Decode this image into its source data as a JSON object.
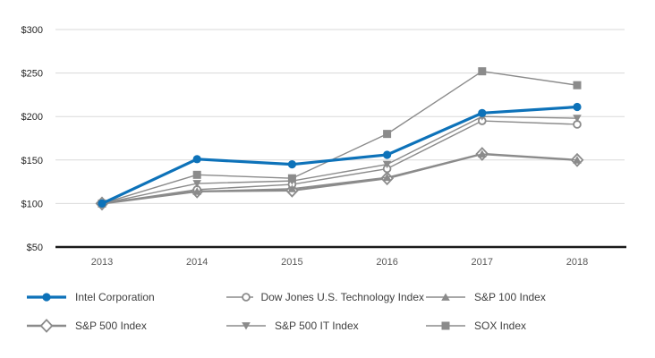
{
  "chart_data": {
    "type": "line",
    "title": "",
    "xlabel": "",
    "ylabel": "",
    "x": [
      "2013",
      "2014",
      "2015",
      "2016",
      "2017",
      "2018"
    ],
    "series": [
      {
        "name": "Intel Corporation",
        "values": [
          100,
          151,
          145,
          156,
          204,
          211
        ],
        "marker": "circle-filled",
        "color": "#0d72b9",
        "line_width": 3.2
      },
      {
        "name": "Dow Jones U.S. Technology Index",
        "values": [
          100,
          116,
          122,
          140,
          195,
          191
        ],
        "marker": "circle-open",
        "color": "#8b8b8b",
        "line_width": 1.4
      },
      {
        "name": "S&P 100 Index",
        "values": [
          100,
          114,
          117,
          130,
          157,
          150
        ],
        "marker": "triangle-up-filled",
        "color": "#8b8b8b",
        "line_width": 1.4
      },
      {
        "name": "S&P 500 Index",
        "values": [
          100,
          114,
          115,
          129,
          157,
          150
        ],
        "marker": "diamond-open",
        "color": "#8b8b8b",
        "line_width": 2.4
      },
      {
        "name": "S&P 500 IT Index",
        "values": [
          100,
          123,
          126,
          145,
          200,
          198
        ],
        "marker": "triangle-down-filled",
        "color": "#8b8b8b",
        "line_width": 1.4
      },
      {
        "name": "SOX Index",
        "values": [
          100,
          133,
          129,
          180,
          252,
          236
        ],
        "marker": "square-filled",
        "color": "#8b8b8b",
        "line_width": 1.4
      }
    ],
    "ylim": [
      50,
      300
    ],
    "yticks": [
      50,
      100,
      150,
      200,
      250,
      300
    ],
    "ytick_labels": [
      "$50",
      "$100",
      "$150",
      "$200",
      "$250",
      "$300"
    ],
    "grid": true,
    "legend_position": "bottom"
  },
  "legend": {
    "rows": [
      [
        0,
        1,
        2
      ],
      [
        3,
        4,
        5
      ]
    ]
  },
  "style": {
    "gridline_color": "#d9d9d9",
    "axis_color": "#1a1a1a",
    "ytick_label_color": "#262626",
    "xtick_label_color": "#595959",
    "legend_text_color": "#404040",
    "background": "#ffffff"
  }
}
